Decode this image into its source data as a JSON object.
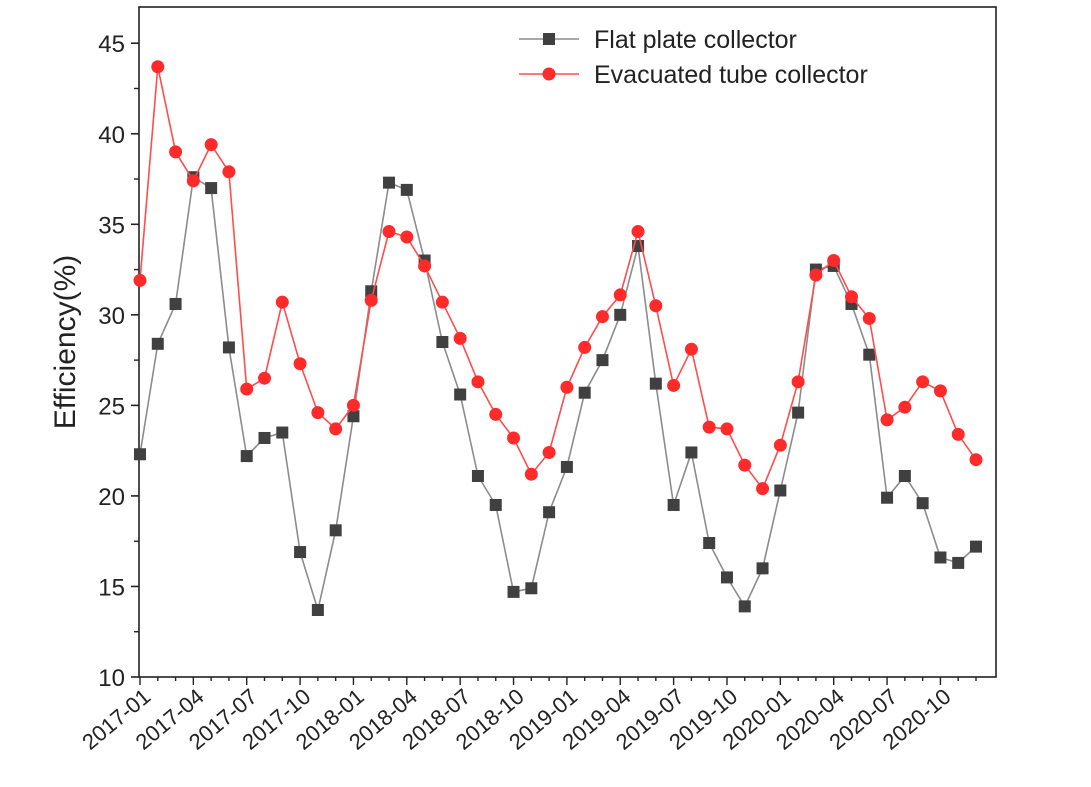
{
  "chart_data": {
    "type": "line",
    "title": "",
    "xlabel": "",
    "ylabel": "Efficiency(%)",
    "ylim": [
      10,
      47
    ],
    "yticks": [
      "10",
      "15",
      "20",
      "25",
      "30",
      "35",
      "40",
      "45"
    ],
    "xtick_labels": [
      "2017-01",
      "2017-04",
      "2017-07",
      "2017-10",
      "2018-01",
      "2018-04",
      "2018-07",
      "2018-10",
      "2019-01",
      "2019-04",
      "2019-07",
      "2019-10",
      "2020-01",
      "2020-04",
      "2020-07",
      "2020-10"
    ],
    "grid": false,
    "legend_position": "top-right",
    "x": [
      "2017-01",
      "2017-02",
      "2017-03",
      "2017-04",
      "2017-05",
      "2017-06",
      "2017-07",
      "2017-08",
      "2017-09",
      "2017-10",
      "2017-11",
      "2017-12",
      "2018-01",
      "2018-02",
      "2018-03",
      "2018-04",
      "2018-05",
      "2018-06",
      "2018-07",
      "2018-08",
      "2018-09",
      "2018-10",
      "2018-11",
      "2018-12",
      "2019-01",
      "2019-02",
      "2019-03",
      "2019-04",
      "2019-05",
      "2019-06",
      "2019-07",
      "2019-08",
      "2019-09",
      "2019-10",
      "2019-11",
      "2019-12",
      "2020-01",
      "2020-02",
      "2020-03",
      "2020-04",
      "2020-05",
      "2020-06",
      "2020-07",
      "2020-08",
      "2020-09",
      "2020-10",
      "2020-11",
      "2020-12"
    ],
    "series": [
      {
        "name": "Flat plate collector",
        "color": "#404040",
        "marker": "square",
        "line_color": "#8c8c8c",
        "values": [
          22.3,
          28.4,
          30.6,
          37.6,
          37.0,
          28.2,
          22.2,
          23.2,
          23.5,
          16.9,
          13.7,
          18.1,
          24.4,
          31.3,
          37.3,
          36.9,
          33.0,
          28.5,
          25.6,
          21.1,
          19.5,
          14.7,
          14.9,
          19.1,
          21.6,
          25.7,
          27.5,
          30.0,
          33.8,
          26.2,
          19.5,
          22.4,
          17.4,
          15.5,
          13.9,
          16.0,
          20.3,
          24.6,
          32.5,
          32.7,
          30.6,
          27.8,
          19.9,
          21.1,
          19.6,
          16.6,
          16.3,
          17.2
        ]
      },
      {
        "name": "Evacuated tube collector",
        "color": "#ff2b2b",
        "marker": "circle",
        "line_color": "#ff4d4d",
        "values": [
          31.9,
          43.7,
          39.0,
          37.4,
          39.4,
          37.9,
          25.9,
          26.5,
          30.7,
          27.3,
          24.6,
          23.7,
          25.0,
          30.8,
          34.6,
          34.3,
          32.7,
          30.7,
          28.7,
          26.3,
          24.5,
          23.2,
          21.2,
          22.4,
          26.0,
          28.2,
          29.9,
          31.1,
          34.6,
          30.5,
          26.1,
          28.1,
          23.8,
          23.7,
          21.7,
          20.4,
          22.8,
          26.3,
          32.2,
          33.0,
          31.0,
          29.8,
          24.2,
          24.9,
          26.3,
          25.8,
          23.4,
          22.0
        ]
      }
    ]
  }
}
